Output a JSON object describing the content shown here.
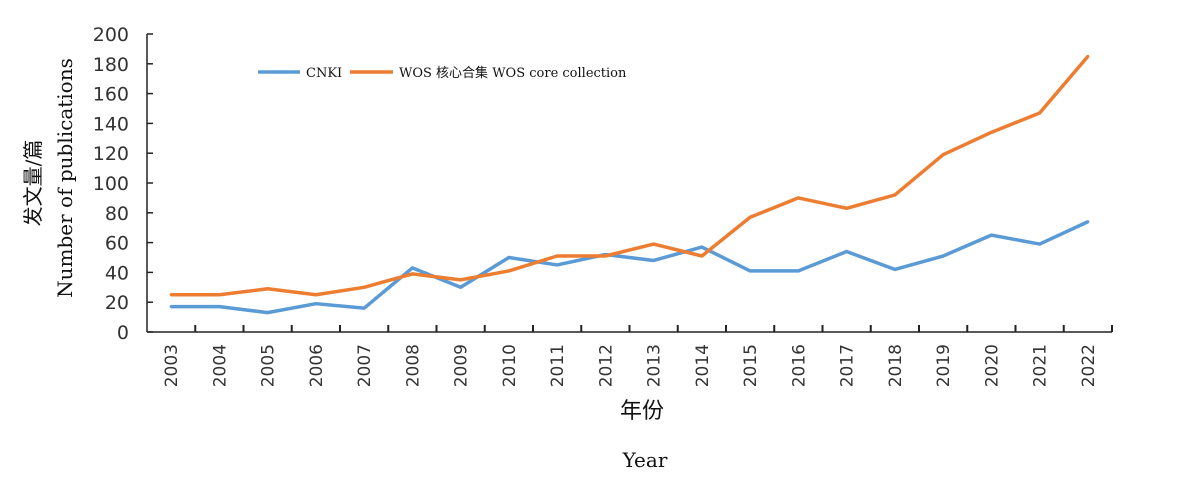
{
  "chart_data": {
    "type": "line",
    "title": "",
    "xlabel": "年份",
    "xlabel_en": "Year",
    "ylabel": "发文量/篇",
    "ylabel_en": "Number of publications",
    "ylim": [
      0,
      200
    ],
    "yticks": [
      "0",
      "20",
      "40",
      "60",
      "80",
      "100",
      "120",
      "140",
      "160",
      "180",
      "200"
    ],
    "categories": [
      "2003",
      "2004",
      "2005",
      "2006",
      "2007",
      "2008",
      "2009",
      "2010",
      "2011",
      "2012",
      "2013",
      "2014",
      "2015",
      "2016",
      "2017",
      "2018",
      "2019",
      "2020",
      "2021",
      "2022"
    ],
    "legend_position": "top-left",
    "grid": false,
    "series": [
      {
        "name": "CNKI",
        "color": "#5b9bd5",
        "values": [
          17,
          17,
          13,
          19,
          16,
          43,
          30,
          50,
          45,
          52,
          48,
          57,
          41,
          41,
          54,
          42,
          51,
          65,
          59,
          74
        ]
      },
      {
        "name": "WOS 核心合集 WOS core collection",
        "color": "#ed7d31",
        "values": [
          25,
          25,
          29,
          25,
          30,
          39,
          35,
          41,
          51,
          51,
          59,
          51,
          77,
          90,
          83,
          92,
          119,
          134,
          147,
          185
        ]
      }
    ]
  }
}
